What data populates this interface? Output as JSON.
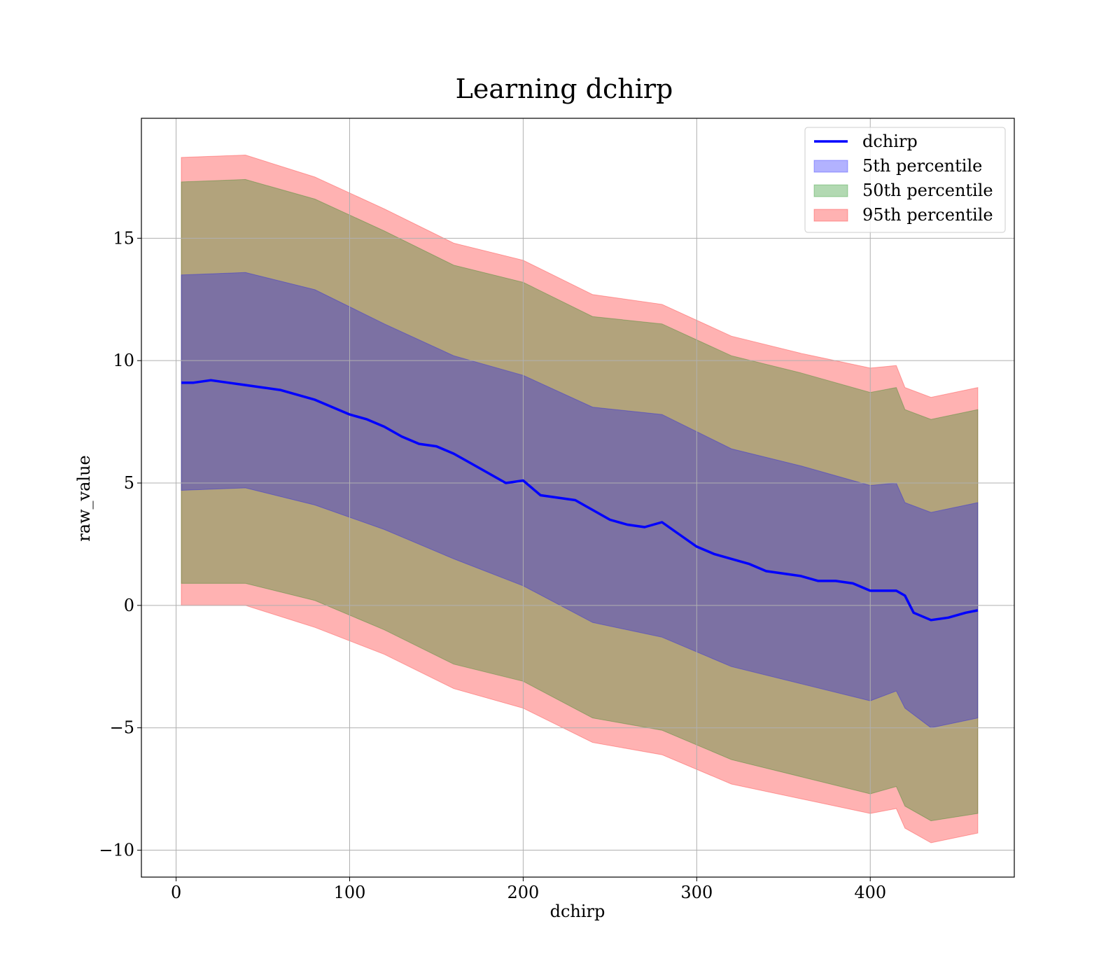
{
  "chart_data": {
    "type": "area",
    "title": "Learning dchirp",
    "xlabel": "dchirp",
    "ylabel": "raw_value",
    "xlim": [
      -20,
      483
    ],
    "ylim": [
      -11.1,
      19.9
    ],
    "xticks": [
      0,
      100,
      200,
      300,
      400
    ],
    "yticks": [
      -10,
      -5,
      0,
      5,
      10,
      15
    ],
    "xtick_labels": [
      "0",
      "100",
      "200",
      "300",
      "400"
    ],
    "ytick_labels": [
      "−10",
      "−5",
      "0",
      "5",
      "10",
      "15"
    ],
    "grid": true,
    "legend_position": "top-right",
    "line": {
      "name": "dchirp",
      "color": "#0000ff",
      "x": [
        3,
        10,
        20,
        30,
        40,
        50,
        60,
        70,
        80,
        90,
        100,
        110,
        120,
        130,
        140,
        150,
        160,
        170,
        180,
        190,
        200,
        210,
        220,
        230,
        240,
        250,
        260,
        270,
        280,
        290,
        300,
        310,
        320,
        330,
        340,
        350,
        360,
        370,
        380,
        390,
        400,
        410,
        415,
        420,
        425,
        435,
        445,
        455,
        462
      ],
      "y": [
        9.1,
        9.1,
        9.2,
        9.1,
        9.0,
        8.9,
        8.8,
        8.6,
        8.4,
        8.1,
        7.8,
        7.6,
        7.3,
        6.9,
        6.6,
        6.5,
        6.2,
        5.8,
        5.4,
        5.0,
        5.1,
        4.5,
        4.4,
        4.3,
        3.9,
        3.5,
        3.3,
        3.2,
        3.4,
        2.9,
        2.4,
        2.1,
        1.9,
        1.7,
        1.4,
        1.3,
        1.2,
        1.0,
        1.0,
        0.9,
        0.6,
        0.6,
        0.6,
        0.4,
        -0.3,
        -0.6,
        -0.5,
        -0.3,
        -0.2
      ]
    },
    "bands": [
      {
        "name": "5th percentile",
        "color": "#0000ff",
        "x": [
          3,
          40,
          80,
          120,
          160,
          200,
          240,
          280,
          320,
          360,
          400,
          415,
          420,
          435,
          462
        ],
        "low": [
          4.7,
          4.8,
          4.1,
          3.1,
          1.9,
          0.8,
          -0.7,
          -1.3,
          -2.5,
          -3.2,
          -3.9,
          -3.5,
          -4.2,
          -5.0,
          -4.6
        ],
        "high": [
          13.5,
          13.6,
          12.9,
          11.5,
          10.2,
          9.4,
          8.1,
          7.8,
          6.4,
          5.7,
          4.9,
          5.0,
          4.2,
          3.8,
          4.2
        ]
      },
      {
        "name": "50th percentile",
        "color": "#008000",
        "x": [
          3,
          40,
          80,
          120,
          160,
          200,
          240,
          280,
          320,
          360,
          400,
          415,
          420,
          435,
          462
        ],
        "low": [
          0.9,
          0.9,
          0.2,
          -1.0,
          -2.4,
          -3.1,
          -4.6,
          -5.1,
          -6.3,
          -7.0,
          -7.7,
          -7.4,
          -8.2,
          -8.8,
          -8.5
        ],
        "high": [
          17.3,
          17.4,
          16.6,
          15.3,
          13.9,
          13.2,
          11.8,
          11.5,
          10.2,
          9.5,
          8.7,
          8.9,
          8.0,
          7.6,
          8.0
        ]
      },
      {
        "name": "95th percentile",
        "color": "#ff0000",
        "x": [
          3,
          40,
          80,
          120,
          160,
          200,
          240,
          280,
          320,
          360,
          400,
          415,
          420,
          435,
          462
        ],
        "low": [
          0.0,
          0.0,
          -0.9,
          -2.0,
          -3.4,
          -4.2,
          -5.6,
          -6.1,
          -7.3,
          -7.9,
          -8.5,
          -8.3,
          -9.1,
          -9.7,
          -9.3
        ],
        "high": [
          18.3,
          18.4,
          17.5,
          16.2,
          14.8,
          14.1,
          12.7,
          12.3,
          11.0,
          10.3,
          9.7,
          9.8,
          8.9,
          8.5,
          8.9
        ]
      }
    ]
  }
}
